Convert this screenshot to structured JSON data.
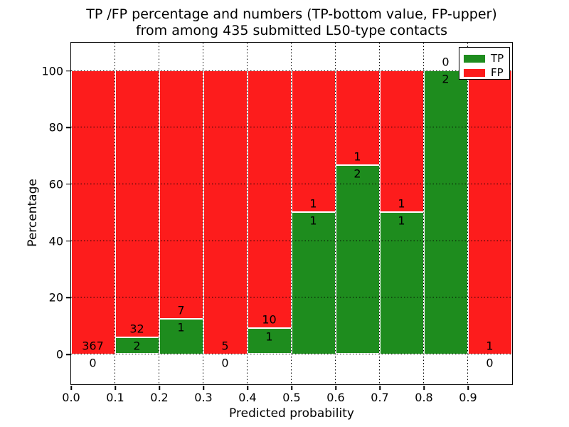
{
  "figure": {
    "title_line1": "TP /FP percentage and numbers (TP-bottom value, FP-upper)",
    "title_line2": "from among 435 submitted L50-type contacts",
    "xlabel": "Predicted probability",
    "ylabel": "Percentage"
  },
  "colors": {
    "tp": "#1e8c1e",
    "fp": "#fd1c1c",
    "grid": "#000000",
    "spine": "#000000",
    "background": "#ffffff"
  },
  "legend": {
    "position": "upper right",
    "items": [
      {
        "label": "TP",
        "color_key": "tp"
      },
      {
        "label": "FP",
        "color_key": "fp"
      }
    ]
  },
  "chart_data": {
    "type": "bar",
    "stacked": true,
    "normalized_to_percent": true,
    "title": "TP /FP percentage and numbers (TP-bottom value, FP-upper)\nfrom among 435 submitted L50-type contacts",
    "xlabel": "Predicted probability",
    "ylabel": "Percentage",
    "xlim": [
      0.0,
      1.0
    ],
    "ylim": [
      -10.5,
      110
    ],
    "xticks": [
      "0.0",
      "0.1",
      "0.2",
      "0.3",
      "0.4",
      "0.5",
      "0.6",
      "0.7",
      "0.8",
      "0.9"
    ],
    "yticks": [
      0,
      20,
      40,
      60,
      80,
      100
    ],
    "grid": "dotted",
    "legend_entries": [
      "TP",
      "FP"
    ],
    "total_contacts": 435,
    "bins": [
      {
        "range": [
          0.0,
          0.1
        ],
        "tp": 0,
        "fp": 367,
        "tp_percent": 0
      },
      {
        "range": [
          0.1,
          0.2
        ],
        "tp": 2,
        "fp": 32,
        "tp_percent": 5.882
      },
      {
        "range": [
          0.2,
          0.3
        ],
        "tp": 1,
        "fp": 7,
        "tp_percent": 12.5
      },
      {
        "range": [
          0.3,
          0.4
        ],
        "tp": 0,
        "fp": 5,
        "tp_percent": 0
      },
      {
        "range": [
          0.4,
          0.5
        ],
        "tp": 1,
        "fp": 10,
        "tp_percent": 9.091
      },
      {
        "range": [
          0.5,
          0.6
        ],
        "tp": 1,
        "fp": 1,
        "tp_percent": 50
      },
      {
        "range": [
          0.6,
          0.7
        ],
        "tp": 2,
        "fp": 1,
        "tp_percent": 66.667
      },
      {
        "range": [
          0.7,
          0.8
        ],
        "tp": 1,
        "fp": 1,
        "tp_percent": 50
      },
      {
        "range": [
          0.8,
          0.9
        ],
        "tp": 2,
        "fp": 0,
        "tp_percent": 100
      },
      {
        "range": [
          0.9,
          1.0
        ],
        "tp": 0,
        "fp": 1,
        "tp_percent": 0
      }
    ]
  }
}
